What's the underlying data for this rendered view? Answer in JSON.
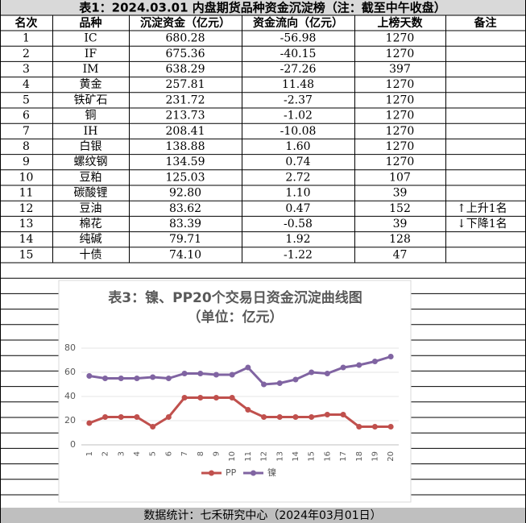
{
  "header": {
    "title": "表1：2024.03.01 内盘期货品种资金沉淀榜（注：截至中午收盘）"
  },
  "table": {
    "columns": [
      "名次",
      "品种",
      "沉淀资金（亿元）",
      "资金流向（亿元）",
      "上榜天数",
      "备注"
    ],
    "rows": [
      {
        "rank": "1",
        "name": "IC",
        "capital": "680.28",
        "flow": "-56.98",
        "days": "1270"
      },
      {
        "rank": "2",
        "name": "IF",
        "capital": "675.36",
        "flow": "-40.15",
        "days": "1270"
      },
      {
        "rank": "3",
        "name": "IM",
        "capital": "638.29",
        "flow": "-27.26",
        "days": "397"
      },
      {
        "rank": "4",
        "name": "黄金",
        "capital": "257.81",
        "flow": "11.48",
        "days": "1270"
      },
      {
        "rank": "5",
        "name": "铁矿石",
        "capital": "231.72",
        "flow": "-2.37",
        "days": "1270"
      },
      {
        "rank": "6",
        "name": "铜",
        "capital": "213.73",
        "flow": "-1.02",
        "days": "1270"
      },
      {
        "rank": "7",
        "name": "IH",
        "capital": "208.41",
        "flow": "-10.08",
        "days": "1270"
      },
      {
        "rank": "8",
        "name": "白银",
        "capital": "138.88",
        "flow": "1.60",
        "days": "1270"
      },
      {
        "rank": "9",
        "name": "螺纹钢",
        "capital": "134.59",
        "flow": "0.74",
        "days": "1270"
      },
      {
        "rank": "10",
        "name": "豆粕",
        "capital": "125.03",
        "flow": "2.72",
        "days": "107"
      },
      {
        "rank": "11",
        "name": "碳酸锂",
        "capital": "92.80",
        "flow": "1.10",
        "days": "39"
      },
      {
        "rank": "12",
        "name": "豆油",
        "capital": "83.62",
        "flow": "0.47",
        "days": "152",
        "note": "↑上升1名"
      },
      {
        "rank": "13",
        "name": "棉花",
        "capital": "83.39",
        "flow": "-0.58",
        "days": "39",
        "note": "↓下降1名"
      },
      {
        "rank": "14",
        "name": "纯碱",
        "capital": "79.71",
        "flow": "1.92",
        "days": "128"
      },
      {
        "rank": "15",
        "name": "十债",
        "capital": "74.10",
        "flow": "-1.22",
        "days": "47"
      }
    ]
  },
  "chart_data": {
    "type": "line",
    "title": "表3：镍、PP20个交易日资金沉淀曲线图",
    "subtitle": "（单位：亿元）",
    "categories": [
      "1",
      "2",
      "3",
      "4",
      "5",
      "6",
      "7",
      "8",
      "9",
      "10",
      "11",
      "12",
      "13",
      "14",
      "15",
      "16",
      "17",
      "18",
      "19",
      "20"
    ],
    "series": [
      {
        "name": "PP",
        "color": "#c0504d",
        "values": [
          18,
          23,
          23,
          23,
          15,
          23,
          39,
          39,
          39,
          39,
          29,
          23,
          23,
          23,
          23,
          25,
          25,
          15,
          15,
          15
        ]
      },
      {
        "name": "镍",
        "color": "#8064a2",
        "values": [
          57,
          55,
          55,
          55,
          56,
          55,
          59,
          59,
          58,
          58,
          64,
          50,
          51,
          54,
          60,
          59,
          64,
          66,
          69,
          73
        ]
      }
    ],
    "ylim": [
      0,
      80
    ],
    "yticks": [
      0,
      20,
      40,
      60,
      80
    ],
    "grid": true,
    "legend": "bottom"
  },
  "footer": {
    "text": "数据统计：七禾研究中心（2024年03月01日）"
  }
}
